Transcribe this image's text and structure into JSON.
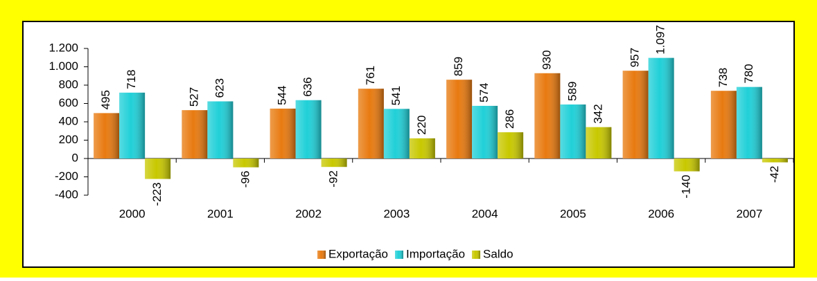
{
  "chart_data": {
    "type": "bar",
    "categories": [
      "2000",
      "2001",
      "2002",
      "2003",
      "2004",
      "2005",
      "2006",
      "2007"
    ],
    "series": [
      {
        "name": "Exportação",
        "color": "#e87a10",
        "values": [
          495,
          527,
          544,
          761,
          859,
          930,
          957,
          738
        ]
      },
      {
        "name": "Importação",
        "color": "#20d0d8",
        "values": [
          718,
          623,
          636,
          541,
          574,
          589,
          1097,
          780
        ],
        "value_labels": [
          "718",
          "623",
          "636",
          "541",
          "574",
          "589",
          "1.097",
          "780"
        ]
      },
      {
        "name": "Saldo",
        "color": "#c8c800",
        "values": [
          -223,
          -96,
          -92,
          220,
          286,
          342,
          -140,
          -42
        ]
      }
    ],
    "ylim": [
      -400,
      1200
    ],
    "yticks": [
      -400,
      -200,
      0,
      200,
      400,
      600,
      800,
      {
        "value": 1000,
        "label": "1.000"
      },
      {
        "value": 1200,
        "label": "1.200"
      }
    ],
    "legend": "bottom"
  }
}
